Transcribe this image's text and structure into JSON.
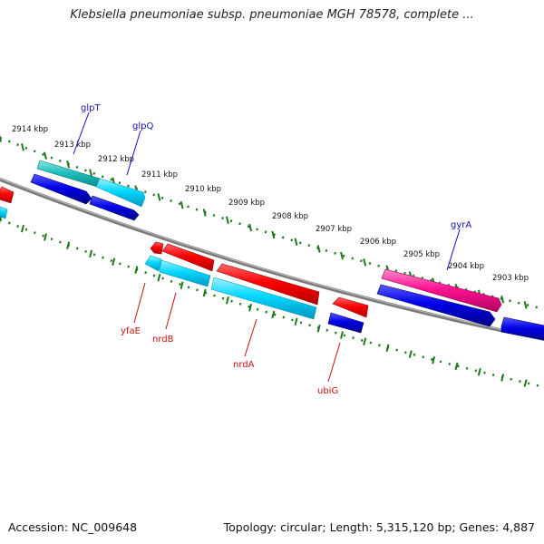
{
  "title": "Klebsiella pneumoniae subsp. pneumoniae MGH 78578, complete ...",
  "footer": {
    "accession": "Accession: NC_009648",
    "summary": "Topology: circular; Length: 5,315,120 bp; Genes: 4,887"
  },
  "colors": {
    "backbone": "#808080",
    "ticks": "#1a7a1a",
    "gene_red": "#ff0000",
    "gene_blue": "#0000e0",
    "gene_cyan": "#00d8ff",
    "gene_teal": "#20c0c0",
    "gene_magenta": "#ff1493",
    "label_top": "#1010c0",
    "label_bottom": "#c81010"
  },
  "kbp_labels": [
    "2914 kbp",
    "2913 kbp",
    "2912 kbp",
    "2911 kbp",
    "2910 kbp",
    "2909 kbp",
    "2908 kbp",
    "2907 kbp",
    "2906 kbp",
    "2905 kbp",
    "2904 kbp",
    "2903 kbp"
  ],
  "genes_top": [
    "glpT",
    "glpQ",
    "gyrA"
  ],
  "genes_bottom": [
    "yfaE",
    "nrdB",
    "nrdA",
    "ubiG"
  ]
}
